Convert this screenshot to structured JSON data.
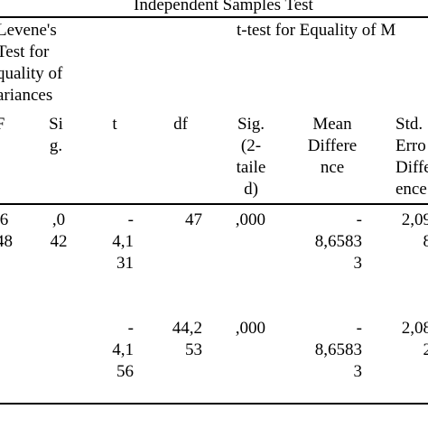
{
  "table": {
    "title": "Independent Samples Test",
    "group_headers": {
      "levene": "Levene's\nTest for\nquality of\nariances",
      "ttest": "t-test for Equality of M"
    },
    "columns": {
      "f": "F",
      "sig": "Si\ng.",
      "t": "t",
      "df": "df",
      "sig2": "Sig.\n(2-\ntaile\nd)",
      "mean": "Mean\nDiffere\nnce",
      "stderr": "Std.\nErro\nDiffe\nence"
    },
    "rows": [
      {
        "f": ",6\n48",
        "sig": ",0\n42",
        "t": "-\n4,1\n31",
        "df": "47",
        "sig2": ",000",
        "mean": "-\n8,6583\n3",
        "stderr": "2,09\n8"
      },
      {
        "f": "",
        "sig": "",
        "t": "-\n4,1\n56",
        "df": "44,2\n53",
        "sig2": ",000",
        "mean": "-\n8,6583\n3",
        "stderr": "2,08\n2"
      }
    ]
  }
}
